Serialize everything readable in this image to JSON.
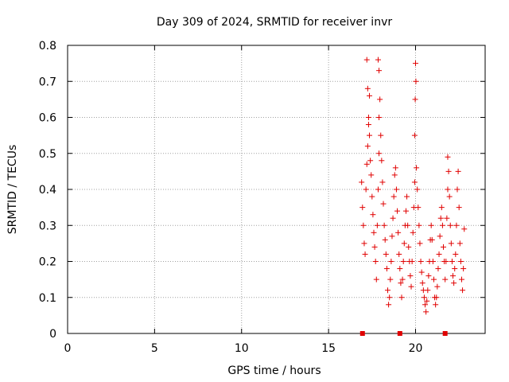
{
  "chart_data": {
    "type": "scatter",
    "title": "Day 309 of 2024, SRMTID for receiver invr",
    "xlabel": "GPS time / hours",
    "ylabel": "SRMTID / TECUs",
    "xlim": [
      0,
      24
    ],
    "ylim": [
      0,
      0.8
    ],
    "xticks": [
      0,
      5,
      10,
      15,
      20
    ],
    "yticks": [
      0,
      0.1,
      0.2,
      0.3,
      0.4,
      0.5,
      0.6,
      0.7,
      0.8
    ],
    "xtick_labels": [
      "0",
      "5",
      "10",
      "15",
      "20"
    ],
    "ytick_labels": [
      "0",
      "0.1",
      "0.2",
      "0.3",
      "0.4",
      "0.5",
      "0.6",
      "0.7",
      "0.8"
    ],
    "grid": true,
    "marker": "plus",
    "color": "#e00000",
    "series": [
      {
        "name": "invr",
        "points": [
          [
            16.9,
            0.42
          ],
          [
            16.95,
            0.35
          ],
          [
            17.0,
            0.3
          ],
          [
            17.05,
            0.25
          ],
          [
            17.1,
            0.22
          ],
          [
            17.15,
            0.4
          ],
          [
            17.2,
            0.47
          ],
          [
            17.25,
            0.52
          ],
          [
            17.3,
            0.58
          ],
          [
            17.35,
            0.66
          ],
          [
            17.2,
            0.76
          ],
          [
            17.25,
            0.68
          ],
          [
            17.3,
            0.6
          ],
          [
            17.35,
            0.55
          ],
          [
            17.4,
            0.48
          ],
          [
            17.45,
            0.44
          ],
          [
            17.5,
            0.38
          ],
          [
            17.55,
            0.33
          ],
          [
            17.6,
            0.28
          ],
          [
            17.65,
            0.24
          ],
          [
            17.7,
            0.2
          ],
          [
            17.75,
            0.15
          ],
          [
            17.8,
            0.3
          ],
          [
            17.85,
            0.4
          ],
          [
            17.9,
            0.5
          ],
          [
            17.9,
            0.6
          ],
          [
            17.95,
            0.65
          ],
          [
            17.85,
            0.76
          ],
          [
            17.9,
            0.73
          ],
          [
            18.0,
            0.55
          ],
          [
            18.05,
            0.48
          ],
          [
            18.1,
            0.42
          ],
          [
            18.15,
            0.36
          ],
          [
            18.2,
            0.3
          ],
          [
            18.25,
            0.26
          ],
          [
            18.3,
            0.22
          ],
          [
            18.35,
            0.18
          ],
          [
            18.4,
            0.12
          ],
          [
            18.45,
            0.08
          ],
          [
            18.5,
            0.1
          ],
          [
            18.55,
            0.15
          ],
          [
            18.6,
            0.2
          ],
          [
            18.65,
            0.27
          ],
          [
            18.7,
            0.32
          ],
          [
            18.75,
            0.38
          ],
          [
            18.8,
            0.44
          ],
          [
            18.85,
            0.46
          ],
          [
            18.9,
            0.4
          ],
          [
            18.95,
            0.34
          ],
          [
            19.0,
            0.28
          ],
          [
            19.05,
            0.22
          ],
          [
            19.1,
            0.18
          ],
          [
            19.15,
            0.14
          ],
          [
            19.2,
            0.1
          ],
          [
            19.25,
            0.15
          ],
          [
            19.3,
            0.2
          ],
          [
            19.35,
            0.25
          ],
          [
            19.4,
            0.3
          ],
          [
            19.45,
            0.34
          ],
          [
            19.5,
            0.38
          ],
          [
            19.55,
            0.3
          ],
          [
            19.6,
            0.24
          ],
          [
            19.65,
            0.2
          ],
          [
            19.7,
            0.16
          ],
          [
            19.75,
            0.13
          ],
          [
            19.8,
            0.2
          ],
          [
            19.85,
            0.28
          ],
          [
            19.9,
            0.35
          ],
          [
            19.95,
            0.42
          ],
          [
            19.95,
            0.55
          ],
          [
            19.98,
            0.65
          ],
          [
            20.0,
            0.75
          ],
          [
            20.02,
            0.7
          ],
          [
            20.05,
            0.46
          ],
          [
            20.1,
            0.4
          ],
          [
            20.15,
            0.35
          ],
          [
            20.2,
            0.3
          ],
          [
            20.25,
            0.25
          ],
          [
            20.3,
            0.2
          ],
          [
            20.35,
            0.17
          ],
          [
            20.4,
            0.14
          ],
          [
            20.45,
            0.12
          ],
          [
            20.5,
            0.1
          ],
          [
            20.55,
            0.08
          ],
          [
            20.6,
            0.06
          ],
          [
            20.65,
            0.09
          ],
          [
            20.7,
            0.12
          ],
          [
            20.75,
            0.16
          ],
          [
            20.8,
            0.2
          ],
          [
            20.85,
            0.26
          ],
          [
            20.9,
            0.3
          ],
          [
            20.95,
            0.26
          ],
          [
            21.0,
            0.2
          ],
          [
            21.05,
            0.15
          ],
          [
            21.1,
            0.1
          ],
          [
            21.15,
            0.08
          ],
          [
            21.2,
            0.1
          ],
          [
            21.25,
            0.13
          ],
          [
            21.3,
            0.18
          ],
          [
            21.35,
            0.22
          ],
          [
            21.4,
            0.27
          ],
          [
            21.45,
            0.32
          ],
          [
            21.5,
            0.35
          ],
          [
            21.55,
            0.3
          ],
          [
            21.6,
            0.24
          ],
          [
            21.65,
            0.2
          ],
          [
            21.7,
            0.15
          ],
          [
            21.75,
            0.2
          ],
          [
            21.8,
            0.32
          ],
          [
            21.85,
            0.4
          ],
          [
            21.9,
            0.45
          ],
          [
            21.85,
            0.49
          ],
          [
            21.95,
            0.38
          ],
          [
            22.0,
            0.3
          ],
          [
            22.05,
            0.25
          ],
          [
            22.1,
            0.2
          ],
          [
            22.15,
            0.16
          ],
          [
            22.2,
            0.14
          ],
          [
            22.25,
            0.18
          ],
          [
            22.3,
            0.22
          ],
          [
            22.35,
            0.3
          ],
          [
            22.4,
            0.4
          ],
          [
            22.45,
            0.45
          ],
          [
            22.5,
            0.35
          ],
          [
            22.55,
            0.25
          ],
          [
            22.6,
            0.2
          ],
          [
            22.65,
            0.15
          ],
          [
            22.7,
            0.12
          ],
          [
            22.75,
            0.18
          ],
          [
            22.8,
            0.29
          ]
        ]
      }
    ],
    "zero_markers_x": [
      16.95,
      19.1,
      21.7
    ]
  }
}
